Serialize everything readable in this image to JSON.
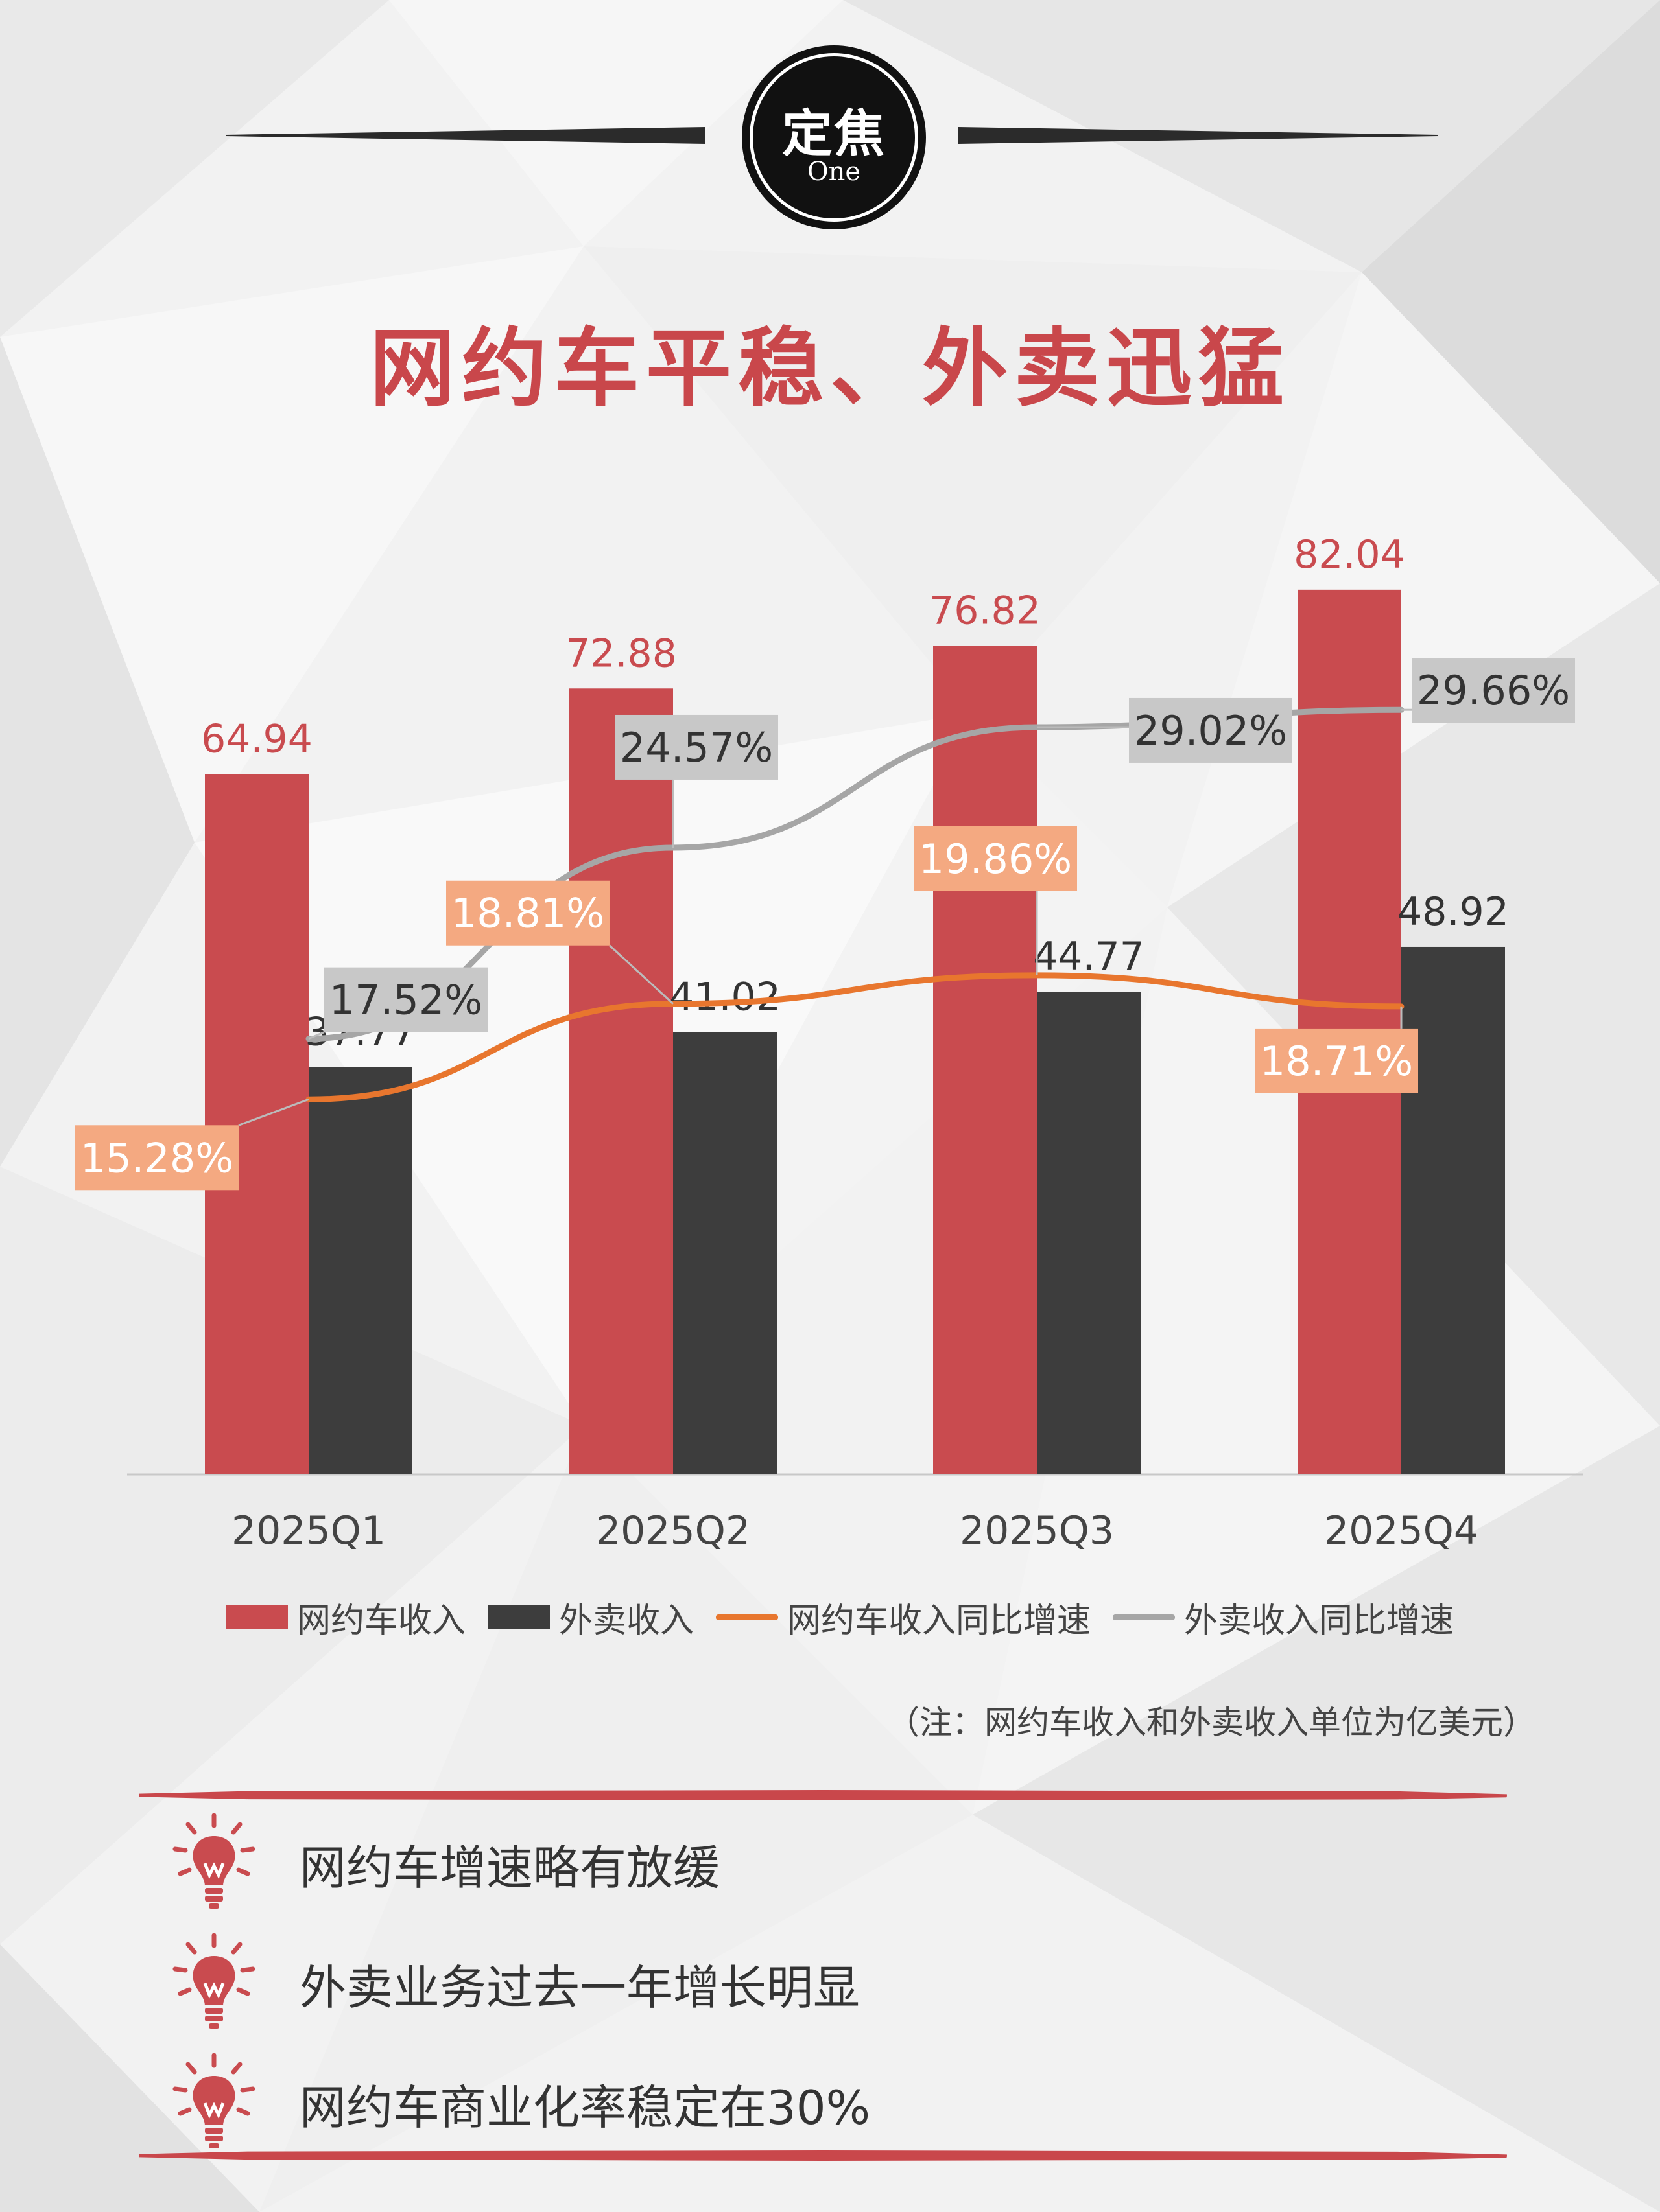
{
  "header": {
    "badge_main": "定焦",
    "badge_sub": "One",
    "title": "网约车平稳、外卖迅猛"
  },
  "chart_data": {
    "type": "bar",
    "categories": [
      "2025Q1",
      "2025Q2",
      "2025Q3",
      "2025Q4"
    ],
    "series": [
      {
        "name": "网约车收入",
        "kind": "bar",
        "color": "#c94b4f",
        "values": [
          64.94,
          72.88,
          76.82,
          82.04
        ],
        "labels": [
          "64.94",
          "72.88",
          "76.82",
          "82.04"
        ]
      },
      {
        "name": "外卖收入",
        "kind": "bar",
        "color": "#3d3d3d",
        "values": [
          37.77,
          41.02,
          44.77,
          48.92
        ],
        "labels": [
          "37.77",
          "41.02",
          "44.77",
          "48.92"
        ]
      },
      {
        "name": "网约车收入同比增速",
        "kind": "line",
        "color": "#e8762e",
        "values": [
          15.28,
          18.81,
          19.86,
          18.71
        ],
        "labels": [
          "15.28%",
          "18.81%",
          "19.86%",
          "18.71%"
        ]
      },
      {
        "name": "外卖收入同比增速",
        "kind": "line",
        "color": "#a6a6a6",
        "values": [
          17.52,
          24.57,
          29.02,
          29.66
        ],
        "labels": [
          "17.52%",
          "24.57%",
          "29.02%",
          "29.66%"
        ]
      }
    ],
    "bar_ylim": [
      0,
      90
    ],
    "grid": false,
    "legend_position": "bottom",
    "note": "（注：网约车收入和外卖收入单位为亿美元）"
  },
  "points": [
    {
      "text": "网约车增速略有放缓",
      "icon": "lightbulb-icon"
    },
    {
      "text": "外卖业务过去一年增长明显",
      "icon": "lightbulb-icon"
    },
    {
      "text": "网约车商业化率稳定在30%",
      "icon": "lightbulb-icon"
    }
  ],
  "colors": {
    "accent": "#c9474b",
    "dark": "#3d3d3d",
    "orange": "#e8762e",
    "gray": "#a6a6a6",
    "orange_label": "#f4a981",
    "gray_label": "#c8c8c8"
  }
}
